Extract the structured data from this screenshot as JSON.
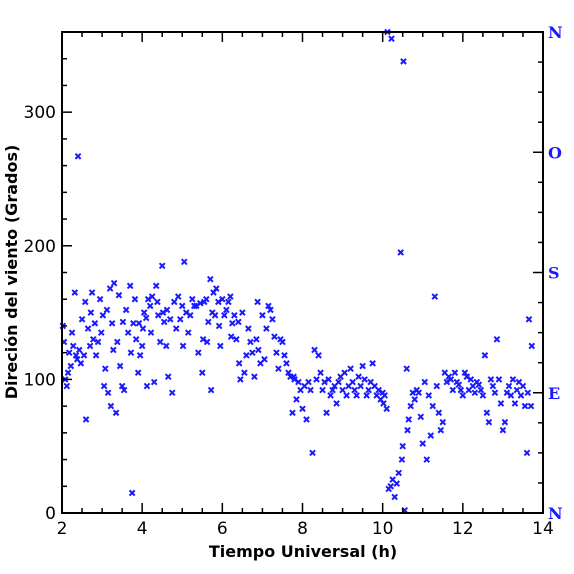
{
  "chart_data": {
    "type": "scatter",
    "title": "",
    "xlabel": "Tiempo Universal (h)",
    "ylabel": "Direción del viento (Grados)",
    "xlim": [
      2,
      14
    ],
    "ylim": [
      0,
      360
    ],
    "xticks": [
      2,
      4,
      6,
      8,
      10,
      12,
      14
    ],
    "yticks": [
      0,
      100,
      200,
      300
    ],
    "right_axis_labels": [
      {
        "label": "N",
        "value": 360
      },
      {
        "label": "O",
        "value": 270
      },
      {
        "label": "S",
        "value": 180
      },
      {
        "label": "E",
        "value": 90
      },
      {
        "label": "N",
        "value": 0
      }
    ],
    "grid": false,
    "marker": "x",
    "color": "#1a1aff",
    "series": [
      {
        "points": [
          [
            2.02,
            140
          ],
          [
            2.05,
            128
          ],
          [
            2.08,
            100
          ],
          [
            2.12,
            95
          ],
          [
            2.15,
            105
          ],
          [
            2.18,
            120
          ],
          [
            2.22,
            110
          ],
          [
            2.25,
            135
          ],
          [
            2.28,
            125
          ],
          [
            2.32,
            165
          ],
          [
            2.35,
            118
          ],
          [
            2.38,
            115
          ],
          [
            2.4,
            267
          ],
          [
            2.43,
            122
          ],
          [
            2.47,
            112
          ],
          [
            2.5,
            145
          ],
          [
            2.55,
            118
          ],
          [
            2.58,
            158
          ],
          [
            2.6,
            70
          ],
          [
            2.65,
            138
          ],
          [
            2.7,
            125
          ],
          [
            2.72,
            150
          ],
          [
            2.75,
            165
          ],
          [
            2.78,
            130
          ],
          [
            2.82,
            142
          ],
          [
            2.85,
            118
          ],
          [
            2.9,
            128
          ],
          [
            2.95,
            160
          ],
          [
            2.98,
            135
          ],
          [
            3.02,
            148
          ],
          [
            3.05,
            95
          ],
          [
            3.08,
            108
          ],
          [
            3.12,
            152
          ],
          [
            3.15,
            90
          ],
          [
            3.2,
            168
          ],
          [
            3.22,
            80
          ],
          [
            3.25,
            142
          ],
          [
            3.28,
            122
          ],
          [
            3.3,
            172
          ],
          [
            3.35,
            75
          ],
          [
            3.38,
            128
          ],
          [
            3.42,
            163
          ],
          [
            3.45,
            110
          ],
          [
            3.5,
            95
          ],
          [
            3.52,
            143
          ],
          [
            3.55,
            92
          ],
          [
            3.6,
            152
          ],
          [
            3.65,
            135
          ],
          [
            3.7,
            170
          ],
          [
            3.72,
            120
          ],
          [
            3.75,
            15
          ],
          [
            3.78,
            142
          ],
          [
            3.82,
            160
          ],
          [
            3.85,
            130
          ],
          [
            3.9,
            105
          ],
          [
            3.92,
            142
          ],
          [
            3.95,
            118
          ],
          [
            4.0,
            125
          ],
          [
            4.02,
            138
          ],
          [
            4.05,
            150
          ],
          [
            4.1,
            146
          ],
          [
            4.12,
            95
          ],
          [
            4.15,
            160
          ],
          [
            4.2,
            155
          ],
          [
            4.22,
            135
          ],
          [
            4.25,
            162
          ],
          [
            4.3,
            98
          ],
          [
            4.35,
            170
          ],
          [
            4.38,
            158
          ],
          [
            4.4,
            148
          ],
          [
            4.45,
            128
          ],
          [
            4.5,
            185
          ],
          [
            4.52,
            150
          ],
          [
            4.55,
            143
          ],
          [
            4.6,
            125
          ],
          [
            4.62,
            152
          ],
          [
            4.65,
            102
          ],
          [
            4.7,
            145
          ],
          [
            4.75,
            90
          ],
          [
            4.8,
            158
          ],
          [
            4.85,
            138
          ],
          [
            4.9,
            162
          ],
          [
            4.95,
            145
          ],
          [
            5.0,
            155
          ],
          [
            5.02,
            125
          ],
          [
            5.05,
            188
          ],
          [
            5.1,
            150
          ],
          [
            5.15,
            135
          ],
          [
            5.2,
            148
          ],
          [
            5.25,
            160
          ],
          [
            5.3,
            155
          ],
          [
            5.35,
            155
          ],
          [
            5.4,
            120
          ],
          [
            5.45,
            157
          ],
          [
            5.5,
            105
          ],
          [
            5.52,
            130
          ],
          [
            5.55,
            158
          ],
          [
            5.6,
            160
          ],
          [
            5.62,
            128
          ],
          [
            5.65,
            143
          ],
          [
            5.7,
            175
          ],
          [
            5.72,
            92
          ],
          [
            5.75,
            150
          ],
          [
            5.78,
            165
          ],
          [
            5.82,
            148
          ],
          [
            5.85,
            168
          ],
          [
            5.9,
            158
          ],
          [
            5.92,
            140
          ],
          [
            5.95,
            125
          ],
          [
            6.0,
            160
          ],
          [
            6.05,
            148
          ],
          [
            6.1,
            152
          ],
          [
            6.15,
            158
          ],
          [
            6.2,
            162
          ],
          [
            6.22,
            132
          ],
          [
            6.25,
            142
          ],
          [
            6.3,
            148
          ],
          [
            6.35,
            130
          ],
          [
            6.4,
            143
          ],
          [
            6.42,
            112
          ],
          [
            6.45,
            100
          ],
          [
            6.5,
            150
          ],
          [
            6.55,
            105
          ],
          [
            6.6,
            118
          ],
          [
            6.65,
            138
          ],
          [
            6.7,
            128
          ],
          [
            6.75,
            120
          ],
          [
            6.8,
            102
          ],
          [
            6.85,
            130
          ],
          [
            6.88,
            158
          ],
          [
            6.9,
            122
          ],
          [
            6.95,
            112
          ],
          [
            7.0,
            148
          ],
          [
            7.05,
            115
          ],
          [
            7.1,
            138
          ],
          [
            7.15,
            155
          ],
          [
            7.2,
            152
          ],
          [
            7.25,
            145
          ],
          [
            7.3,
            132
          ],
          [
            7.35,
            120
          ],
          [
            7.4,
            108
          ],
          [
            7.45,
            130
          ],
          [
            7.5,
            128
          ],
          [
            7.55,
            118
          ],
          [
            7.6,
            112
          ],
          [
            7.65,
            105
          ],
          [
            7.7,
            102
          ],
          [
            7.75,
            75
          ],
          [
            7.78,
            102
          ],
          [
            7.8,
            100
          ],
          [
            7.85,
            85
          ],
          [
            7.9,
            98
          ],
          [
            7.95,
            92
          ],
          [
            8.0,
            78
          ],
          [
            8.05,
            95
          ],
          [
            8.1,
            70
          ],
          [
            8.15,
            98
          ],
          [
            8.2,
            92
          ],
          [
            8.25,
            45
          ],
          [
            8.3,
            122
          ],
          [
            8.35,
            100
          ],
          [
            8.4,
            118
          ],
          [
            8.45,
            105
          ],
          [
            8.5,
            92
          ],
          [
            8.55,
            98
          ],
          [
            8.6,
            75
          ],
          [
            8.65,
            100
          ],
          [
            8.7,
            88
          ],
          [
            8.75,
            92
          ],
          [
            8.8,
            95
          ],
          [
            8.85,
            82
          ],
          [
            8.9,
            98
          ],
          [
            8.95,
            102
          ],
          [
            9.0,
            92
          ],
          [
            9.05,
            105
          ],
          [
            9.1,
            88
          ],
          [
            9.15,
            95
          ],
          [
            9.2,
            108
          ],
          [
            9.25,
            98
          ],
          [
            9.3,
            92
          ],
          [
            9.35,
            88
          ],
          [
            9.4,
            102
          ],
          [
            9.45,
            95
          ],
          [
            9.5,
            110
          ],
          [
            9.55,
            100
          ],
          [
            9.6,
            88
          ],
          [
            9.65,
            92
          ],
          [
            9.7,
            98
          ],
          [
            9.75,
            112
          ],
          [
            9.8,
            95
          ],
          [
            9.85,
            88
          ],
          [
            9.9,
            92
          ],
          [
            9.95,
            85
          ],
          [
            10.0,
            90
          ],
          [
            10.02,
            82
          ],
          [
            10.05,
            88
          ],
          [
            10.1,
            78
          ],
          [
            10.12,
            360
          ],
          [
            10.15,
            18
          ],
          [
            10.2,
            20
          ],
          [
            10.22,
            355
          ],
          [
            10.25,
            25
          ],
          [
            10.3,
            12
          ],
          [
            10.35,
            22
          ],
          [
            10.4,
            30
          ],
          [
            10.45,
            195
          ],
          [
            10.48,
            40
          ],
          [
            10.5,
            50
          ],
          [
            10.52,
            338
          ],
          [
            10.55,
            2
          ],
          [
            10.6,
            108
          ],
          [
            10.62,
            62
          ],
          [
            10.65,
            70
          ],
          [
            10.7,
            80
          ],
          [
            10.75,
            90
          ],
          [
            10.8,
            85
          ],
          [
            10.85,
            92
          ],
          [
            10.9,
            90
          ],
          [
            10.95,
            72
          ],
          [
            11.0,
            52
          ],
          [
            11.05,
            98
          ],
          [
            11.1,
            40
          ],
          [
            11.15,
            88
          ],
          [
            11.2,
            58
          ],
          [
            11.25,
            80
          ],
          [
            11.3,
            162
          ],
          [
            11.35,
            95
          ],
          [
            11.4,
            75
          ],
          [
            11.45,
            62
          ],
          [
            11.5,
            68
          ],
          [
            11.55,
            105
          ],
          [
            11.6,
            98
          ],
          [
            11.65,
            102
          ],
          [
            11.7,
            100
          ],
          [
            11.75,
            92
          ],
          [
            11.8,
            105
          ],
          [
            11.85,
            98
          ],
          [
            11.9,
            96
          ],
          [
            11.95,
            92
          ],
          [
            12.0,
            88
          ],
          [
            12.05,
            105
          ],
          [
            12.1,
            102
          ],
          [
            12.15,
            92
          ],
          [
            12.2,
            100
          ],
          [
            12.25,
            95
          ],
          [
            12.3,
            90
          ],
          [
            12.35,
            98
          ],
          [
            12.4,
            96
          ],
          [
            12.45,
            92
          ],
          [
            12.5,
            88
          ],
          [
            12.55,
            118
          ],
          [
            12.6,
            75
          ],
          [
            12.65,
            68
          ],
          [
            12.7,
            100
          ],
          [
            12.75,
            95
          ],
          [
            12.8,
            90
          ],
          [
            12.85,
            130
          ],
          [
            12.9,
            100
          ],
          [
            12.95,
            82
          ],
          [
            13.0,
            62
          ],
          [
            13.05,
            68
          ],
          [
            13.1,
            90
          ],
          [
            13.15,
            95
          ],
          [
            13.2,
            88
          ],
          [
            13.25,
            100
          ],
          [
            13.3,
            82
          ],
          [
            13.35,
            92
          ],
          [
            13.4,
            98
          ],
          [
            13.45,
            88
          ],
          [
            13.5,
            95
          ],
          [
            13.55,
            80
          ],
          [
            13.6,
            45
          ],
          [
            13.62,
            90
          ],
          [
            13.65,
            145
          ],
          [
            13.7,
            80
          ],
          [
            13.72,
            125
          ]
        ]
      }
    ]
  }
}
